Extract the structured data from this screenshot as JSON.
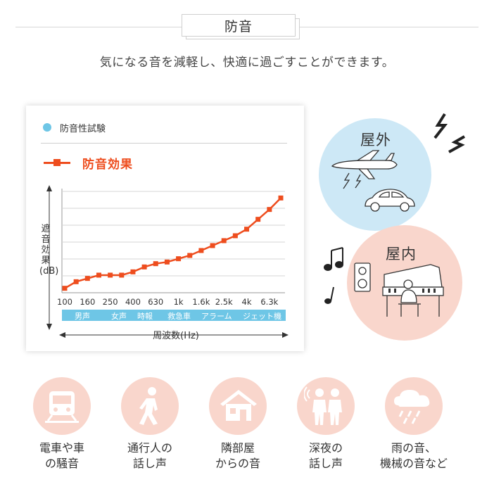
{
  "header": {
    "title": "防音"
  },
  "subtitle": "気になる音を減軽し、快適に過ごすことができます。",
  "chart_panel": {
    "test_label": "防音性試験",
    "legend_label": "防音効果",
    "y_axis_label": "遮音効果(dB)",
    "x_axis_label": "周波数(Hz)",
    "band_labels": [
      "男声",
      "女声",
      "時報",
      "救急車",
      "アラーム",
      "ジェット機"
    ],
    "colors": {
      "accent": "#ee4d1e",
      "band": "#6ec6e6"
    }
  },
  "chart_data": {
    "type": "line",
    "x_tick_labels": [
      "100",
      "160",
      "250",
      "400",
      "630",
      "1k",
      "1.6k",
      "2.5k",
      "4k",
      "6.3k"
    ],
    "x": [
      "100",
      "125",
      "160",
      "200",
      "250",
      "315",
      "400",
      "500",
      "630",
      "800",
      "1k",
      "1.25k",
      "1.6k",
      "2k",
      "2.5k",
      "3.15k",
      "4k",
      "5k",
      "6.3k",
      "8k"
    ],
    "series": [
      {
        "name": "防音効果",
        "values": [
          1,
          5,
          7,
          9,
          9,
          9,
          11,
          14,
          16,
          17,
          19,
          21,
          24,
          27,
          30,
          33,
          37,
          43,
          49,
          56
        ]
      }
    ],
    "ylim": [
      0,
      60
    ],
    "grid": true,
    "legend": "top-left"
  },
  "outdoor": {
    "title": "屋外",
    "icons": [
      "airplane-icon",
      "car-icon",
      "lightning-icon"
    ]
  },
  "indoor": {
    "title": "屋内",
    "icons": [
      "piano-icon",
      "speaker-icon",
      "music-note-icon"
    ]
  },
  "features": [
    {
      "icon": "train-icon",
      "line1": "電車や車",
      "line2": "の騒音"
    },
    {
      "icon": "walking-person-icon",
      "line1": "通行人の",
      "line2": "話し声"
    },
    {
      "icon": "house-icon",
      "line1": "隣部屋",
      "line2": "からの音"
    },
    {
      "icon": "people-talking-icon",
      "line1": "深夜の",
      "line2": "話し声"
    },
    {
      "icon": "rain-cloud-icon",
      "line1": "雨の音、",
      "line2": "機械の音など"
    }
  ]
}
